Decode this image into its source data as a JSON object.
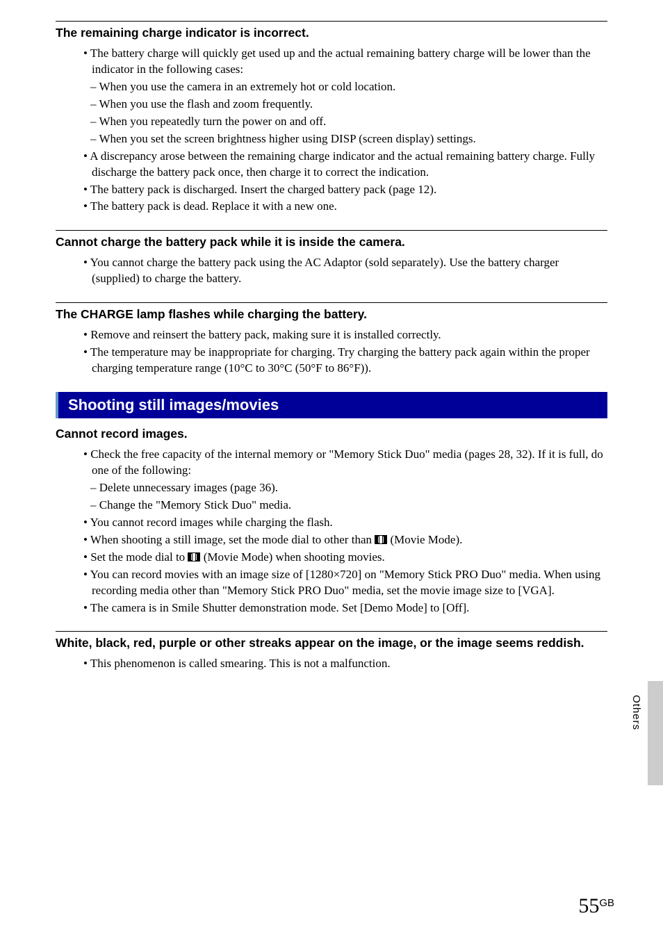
{
  "sections": [
    {
      "title": "The remaining charge indicator is incorrect.",
      "bullets": [
        "The battery charge will quickly get used up and the actual remaining battery charge will be lower than the indicator in the following cases:"
      ],
      "dashes": [
        "When you use the camera in an extremely hot or cold location.",
        "When you use the flash and zoom frequently.",
        "When you repeatedly turn the power on and off.",
        "When you set the screen brightness higher using DISP (screen display) settings."
      ],
      "bullets_after": [
        "A discrepancy arose between the remaining charge indicator and the actual remaining battery charge. Fully discharge the battery pack once, then charge it to correct the indication.",
        "The battery pack is discharged. Insert the charged battery pack (page 12).",
        "The battery pack is dead. Replace it with a new one."
      ]
    },
    {
      "title": "Cannot charge the battery pack while it is inside the camera.",
      "bullets": [
        "You cannot charge the battery pack using the AC Adaptor (sold separately). Use the battery charger (supplied) to charge the battery."
      ]
    },
    {
      "title": "The CHARGE lamp flashes while charging the battery.",
      "bullets": [
        "Remove and reinsert the battery pack, making sure it is installed correctly.",
        "The temperature may be inappropriate for charging. Try charging the battery pack again within the proper charging temperature range (10°C to 30°C (50°F to 86°F))."
      ]
    }
  ],
  "blue_heading": "Shooting still images/movies",
  "sections2": [
    {
      "title": "Cannot record images.",
      "bullets": [
        "Check the free capacity of the internal memory or \"Memory Stick Duo\" media (pages 28, 32). If it is full, do one of the following:"
      ],
      "dashes": [
        "Delete unnecessary images (page 36).",
        "Change the \"Memory Stick Duo\" media."
      ],
      "bullets_after_pre_icon": "When shooting a still image, set the mode dial to other than ",
      "bullets_after_post_icon": " (Movie Mode).",
      "bullets_after_pre_icon2": "Set the mode dial to ",
      "bullets_after_post_icon2": " (Movie Mode) when shooting movies.",
      "bullets_first_plain": "You cannot record images while charging the flash.",
      "bullets_after": [
        "You can record movies with an image size of [1280×720] on \"Memory Stick PRO Duo\" media. When using recording media other than \"Memory Stick PRO Duo\" media, set the movie image size to [VGA].",
        "The camera is in Smile Shutter demonstration mode. Set [Demo Mode] to [Off]."
      ]
    },
    {
      "title": "White, black, red, purple or other streaks appear on the image, or the image seems reddish.",
      "bullets": [
        "This phenomenon is called smearing. This is not a malfunction."
      ]
    }
  ],
  "sidebar_label": "Others",
  "page_number": "55",
  "page_suffix": "GB"
}
